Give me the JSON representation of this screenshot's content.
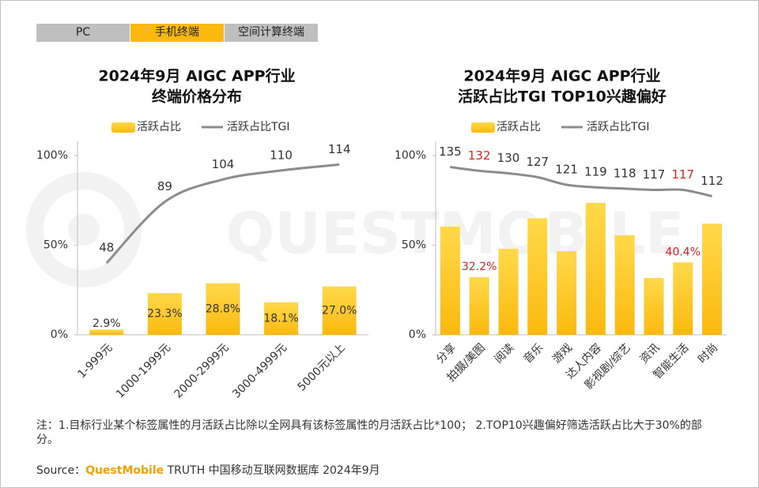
{
  "tabs": [
    "PC",
    "手机终端",
    "空间计算终端"
  ],
  "active_tab": 1,
  "watermark": "QUESTMOBILE",
  "chart_data": [
    {
      "type": "bar",
      "title": "2024年9月 AIGC APP行业",
      "subtitle": "终端价格分布",
      "categories": [
        "1-999元",
        "1000-1999元",
        "2000-2999元",
        "3000-4999元",
        "5000元以上"
      ],
      "series": [
        {
          "name": "活跃占比",
          "type": "bar",
          "color": "#fbb90f",
          "values": [
            2.9,
            23.3,
            28.8,
            18.1,
            27.0
          ],
          "value_labels": [
            "2.9%",
            "23.3%",
            "28.8%",
            "18.1%",
            "27.0%"
          ],
          "value_label_position": "inside"
        },
        {
          "name": "活跃占比TGI",
          "type": "line",
          "color": "#8c8c8c",
          "axis": "y2",
          "values": [
            48,
            89,
            104,
            110,
            114
          ]
        }
      ],
      "ylim": [
        0,
        100
      ],
      "yticks": [
        {
          "value": 0,
          "label": "0%"
        },
        {
          "value": 50,
          "label": "50%"
        },
        {
          "value": 100,
          "label": "100%"
        }
      ],
      "y2lim": [
        0,
        120
      ]
    },
    {
      "type": "bar",
      "title": "2024年9月 AIGC APP行业",
      "subtitle": "活跃占比TGI TOP10兴趣偏好",
      "categories": [
        "分享",
        "拍摄/美图",
        "阅读",
        "音乐",
        "游戏",
        "达人内容",
        "影视剧/综艺",
        "资讯",
        "智能生活",
        "时尚"
      ],
      "series": [
        {
          "name": "活跃占比",
          "type": "bar",
          "color": "#fbb90f",
          "values": [
            60.4,
            32.2,
            48.0,
            65.0,
            46.7,
            73.6,
            55.5,
            31.7,
            40.4,
            62.0
          ],
          "value_labels": [
            null,
            "32.2%",
            null,
            null,
            null,
            null,
            null,
            null,
            "40.4%",
            null
          ],
          "value_label_position": "top",
          "label_colors": [
            null,
            "#e02020",
            null,
            null,
            null,
            null,
            null,
            null,
            "#e02020",
            null
          ]
        },
        {
          "name": "活跃占比TGI",
          "type": "line",
          "color": "#8c8c8c",
          "axis": "y2",
          "values": [
            135,
            132,
            130,
            127,
            121,
            119,
            118,
            117,
            117,
            112
          ],
          "label_colors": [
            "#333333",
            "#e02020",
            "#333333",
            "#333333",
            "#333333",
            "#333333",
            "#333333",
            "#333333",
            "#e02020",
            "#333333"
          ]
        }
      ],
      "ylim": [
        0,
        100
      ],
      "yticks": [
        {
          "value": 0,
          "label": "0%"
        },
        {
          "value": 50,
          "label": "50%"
        },
        {
          "value": 100,
          "label": "100%"
        }
      ],
      "y2lim": [
        3,
        144
      ]
    }
  ],
  "note": "注：1.目标行业某个标签属性的月活跃占比除以全网具有该标签属性的月活跃占比*100； 2.TOP10兴趣偏好筛选活跃占比大于30%的部分。",
  "source": {
    "label": "Source：",
    "brand": "QuestMobile",
    "text": "TRUTH 中国移动互联网数据库 2024年9月"
  }
}
